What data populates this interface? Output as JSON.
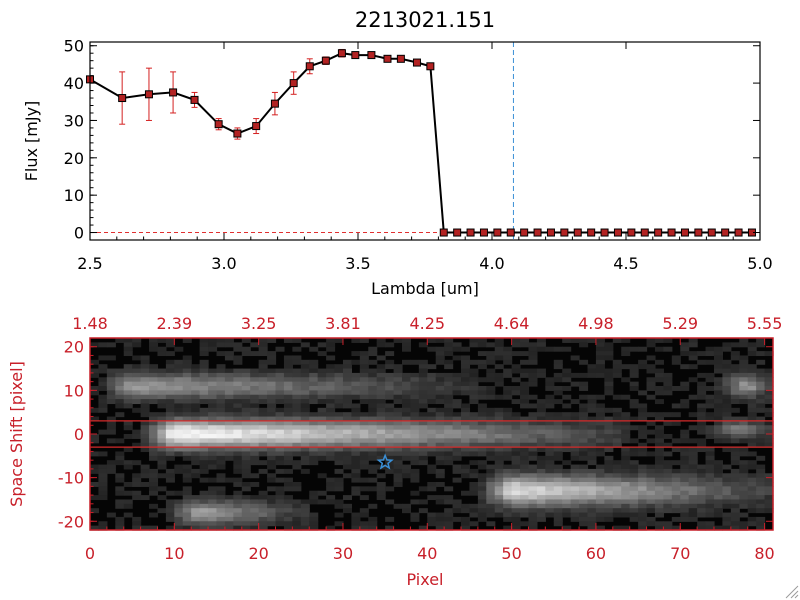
{
  "chart_data": [
    {
      "type": "line",
      "title": "2213021.151",
      "xlabel": "Lambda [um]",
      "ylabel": "Flux [mJy]",
      "xlim": [
        2.5,
        5.0
      ],
      "ylim": [
        -2,
        51
      ],
      "x_ticks": [
        2.5,
        3.0,
        3.5,
        4.0,
        4.5,
        5.0
      ],
      "x_tick_labels": [
        "2.5",
        "3.0",
        "3.5",
        "4.0",
        "4.5",
        "5.0"
      ],
      "y_ticks": [
        0,
        10,
        20,
        30,
        40,
        50
      ],
      "y_tick_labels": [
        "0",
        "10",
        "20",
        "30",
        "40",
        "50"
      ],
      "grid": false,
      "line_color": "#000000",
      "marker_color": "#b22222",
      "errorbar_color": "#d42020",
      "vline_color": "#3a8fd6",
      "vline_x": 4.08,
      "baseline_color": "#e03030",
      "series": [
        {
          "x": [
            2.5,
            2.62,
            2.72,
            2.81,
            2.89,
            2.98,
            3.05,
            3.12,
            3.19,
            3.26,
            3.32,
            3.38,
            3.44,
            3.49,
            3.55,
            3.61,
            3.66,
            3.72,
            3.77,
            3.82,
            3.87,
            3.92,
            3.97,
            4.02,
            4.07,
            4.12,
            4.17,
            4.22,
            4.27,
            4.32,
            4.37,
            4.42,
            4.47,
            4.52,
            4.57,
            4.62,
            4.67,
            4.72,
            4.77,
            4.82,
            4.87,
            4.92,
            4.97
          ],
          "y": [
            41,
            36,
            37,
            37.5,
            35.5,
            29,
            26.5,
            28.5,
            34.5,
            40,
            44.5,
            46,
            48,
            47.5,
            47.5,
            46.5,
            46.5,
            45.5,
            44.5,
            0,
            0,
            0,
            0,
            0,
            0,
            0,
            0,
            0,
            0,
            0,
            0,
            0,
            0,
            0,
            0,
            0,
            0,
            0,
            0,
            0,
            0,
            0,
            0
          ],
          "yerr": [
            0,
            7,
            7,
            5.5,
            2,
            1.5,
            1.5,
            2,
            3,
            3,
            2,
            1,
            1,
            0.5,
            0.5,
            0.5,
            0.5,
            0.5,
            0.5,
            0,
            0,
            0,
            0,
            0,
            0,
            0,
            0,
            0,
            0,
            0,
            0,
            0,
            0,
            0,
            0,
            0,
            0,
            0,
            0,
            0,
            0,
            0,
            0
          ]
        }
      ]
    },
    {
      "type": "heatmap",
      "xlabel": "Pixel",
      "ylabel": "Space Shift [pixel]",
      "xlim": [
        0,
        81
      ],
      "ylim": [
        -22,
        22
      ],
      "x_ticks": [
        0,
        10,
        20,
        30,
        40,
        50,
        60,
        70,
        80
      ],
      "x_tick_labels": [
        "0",
        "10",
        "20",
        "30",
        "40",
        "50",
        "60",
        "70",
        "80"
      ],
      "y_ticks": [
        -20,
        -10,
        0,
        10,
        20
      ],
      "y_tick_labels": [
        "-20",
        "-10",
        "0",
        "10",
        "20"
      ],
      "top_axis_labels": [
        "1.48",
        "2.39",
        "3.25",
        "3.81",
        "4.25",
        "4.64",
        "4.98",
        "5.29",
        "5.55"
      ],
      "axis_color": "#c8202a",
      "hline_color": "#d42a2a",
      "hlines_y": [
        3,
        -3
      ],
      "star_color": "#3a8fd6",
      "star": [
        35,
        -6.5
      ],
      "star_icon": "star-icon",
      "colormap": "grayscale",
      "features": [
        {
          "name": "main-trace",
          "x": [
            7,
            62
          ],
          "y": 0,
          "peak_x": 10,
          "peak": 1.0,
          "width": 3.2
        },
        {
          "name": "lower-right-trace",
          "x": [
            46,
            81
          ],
          "y": -13,
          "peak_x": 50,
          "peak": 0.85,
          "width": 3.4
        },
        {
          "name": "upper-left-trace",
          "x": [
            0,
            45
          ],
          "y": 11,
          "peak_x": 5,
          "peak": 0.55,
          "width": 2.8
        },
        {
          "name": "lower-left-blob",
          "x": [
            10,
            25
          ],
          "y": -18,
          "peak_x": 13,
          "peak": 0.6,
          "width": 2.6
        },
        {
          "name": "right-edge-top",
          "x": [
            74,
            81
          ],
          "y": 11,
          "peak_x": 78,
          "peak": 0.55,
          "width": 2.5
        },
        {
          "name": "right-edge-mid",
          "x": [
            74,
            81
          ],
          "y": 1,
          "peak_x": 77,
          "peak": 0.45,
          "width": 2.0
        }
      ]
    }
  ]
}
